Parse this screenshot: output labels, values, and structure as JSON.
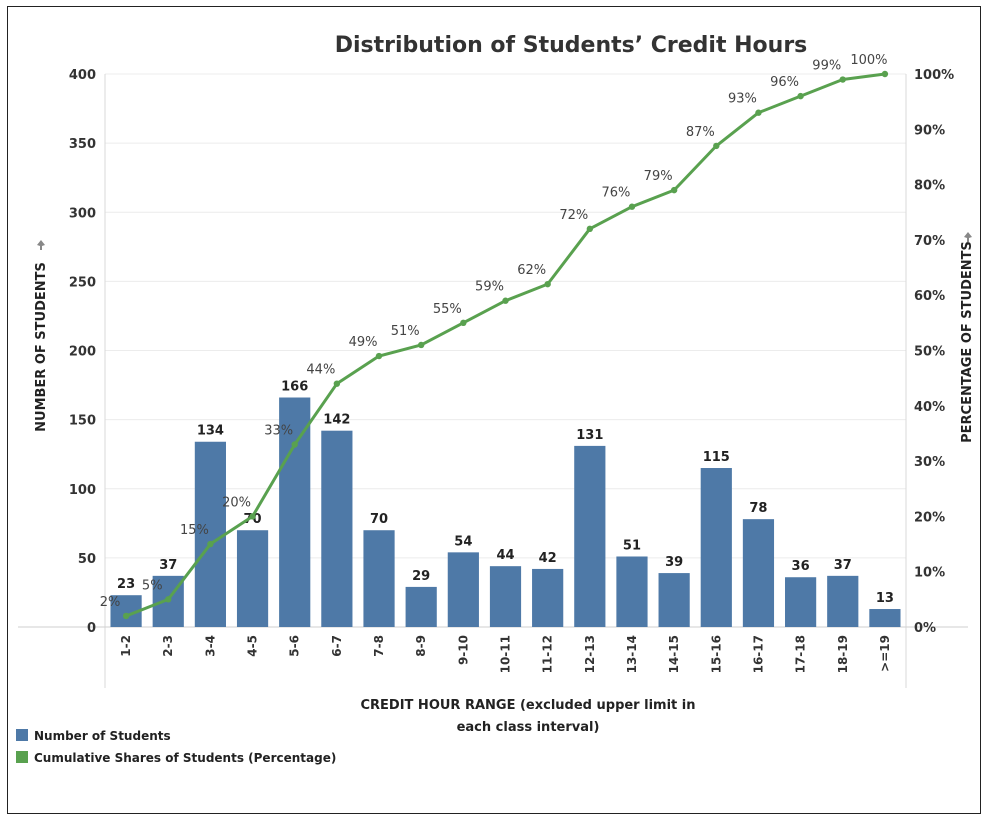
{
  "chart_data": {
    "type": "bar",
    "title": "Distribution of Students’ Credit Hours",
    "xlabel_line1": "CREDIT HOUR RANGE (excluded upper limit in",
    "xlabel_line2": "each class interval)",
    "ylabel_left": "NUMBER OF STUDENTS",
    "ylabel_right": "PERCENTAGE OF STUDENTS",
    "categories": [
      "1-2",
      "2-3",
      "3-4",
      "4-5",
      "5-6",
      "6-7",
      "7-8",
      "8-9",
      "9-10",
      "10-11",
      "11-12",
      "12-13",
      "13-14",
      "14-15",
      "15-16",
      "16-17",
      "17-18",
      "18-19",
      ">=19"
    ],
    "series": [
      {
        "name": "Number of Students",
        "kind": "bar",
        "color": "#4e79a7",
        "values": [
          23,
          37,
          134,
          70,
          166,
          142,
          70,
          29,
          54,
          44,
          42,
          131,
          51,
          39,
          115,
          78,
          36,
          37,
          13
        ]
      },
      {
        "name": "Cumulative Shares of Students (Percentage)",
        "kind": "line",
        "color": "#59a14f",
        "values": [
          2,
          5,
          15,
          20,
          33,
          44,
          49,
          51,
          55,
          59,
          62,
          72,
          76,
          79,
          87,
          93,
          96,
          99,
          100
        ]
      }
    ],
    "ylim_left": [
      0,
      400
    ],
    "yticks_left": [
      "0",
      "50",
      "100",
      "150",
      "200",
      "250",
      "300",
      "350",
      "400"
    ],
    "ylim_right": [
      0,
      100
    ],
    "yticks_right": [
      "0%",
      "10%",
      "20%",
      "30%",
      "40%",
      "50%",
      "60%",
      "70%",
      "80%",
      "90%",
      "100%"
    ],
    "grid": true,
    "legend_position": "bottom-left"
  }
}
